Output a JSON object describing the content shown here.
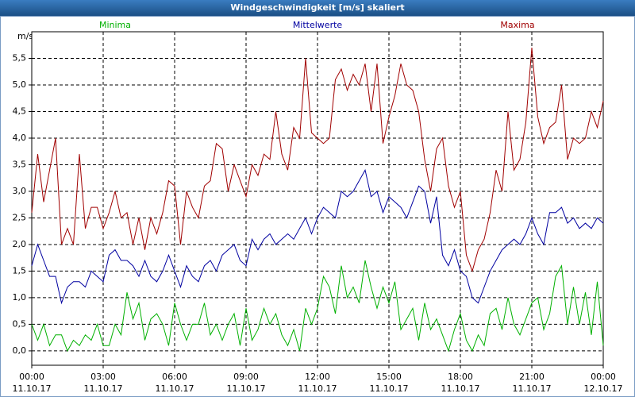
{
  "chart_data": {
    "type": "line",
    "title": "Windgeschwindigkeit [m/s] skaliert",
    "y_label": "m/s",
    "grid": true,
    "xlim": [
      0,
      24
    ],
    "ylim": [
      -0.27,
      6.0
    ],
    "yticks": [
      {
        "value": 0,
        "label": "0,0"
      },
      {
        "value": 0.5,
        "label": "0,5"
      },
      {
        "value": 1,
        "label": "1,0"
      },
      {
        "value": 1.5,
        "label": "1,5"
      },
      {
        "value": 2,
        "label": "2,0"
      },
      {
        "value": 2.5,
        "label": "2,5"
      },
      {
        "value": 3,
        "label": "3,0"
      },
      {
        "value": 3.5,
        "label": "3,5"
      },
      {
        "value": 4,
        "label": "4,0"
      },
      {
        "value": 4.5,
        "label": "4,5"
      },
      {
        "value": 5,
        "label": "5,0"
      },
      {
        "value": 5.5,
        "label": "5,5"
      }
    ],
    "xticks": [
      {
        "value": 0,
        "label": "00:00"
      },
      {
        "value": 3,
        "label": "03:00"
      },
      {
        "value": 6,
        "label": "06:00"
      },
      {
        "value": 9,
        "label": "09:00"
      },
      {
        "value": 12,
        "label": "12:00"
      },
      {
        "value": 15,
        "label": "15:00"
      },
      {
        "value": 18,
        "label": "18:00"
      },
      {
        "value": 21,
        "label": "21:00"
      },
      {
        "value": 24,
        "label": "00:00"
      }
    ],
    "xtick_dates": [
      "11.10.17",
      "11.10.17",
      "11.10.17",
      "11.10.17",
      "11.10.17",
      "11.10.17",
      "11.10.17",
      "11.10.17",
      "12.10.17"
    ],
    "x": [
      0,
      0.25,
      0.5,
      0.75,
      1,
      1.25,
      1.5,
      1.75,
      2,
      2.25,
      2.5,
      2.75,
      3,
      3.25,
      3.5,
      3.75,
      4,
      4.25,
      4.5,
      4.75,
      5,
      5.25,
      5.5,
      5.75,
      6,
      6.25,
      6.5,
      6.75,
      7,
      7.25,
      7.5,
      7.75,
      8,
      8.25,
      8.5,
      8.75,
      9,
      9.25,
      9.5,
      9.75,
      10,
      10.25,
      10.5,
      10.75,
      11,
      11.25,
      11.5,
      11.75,
      12,
      12.25,
      12.5,
      12.75,
      13,
      13.25,
      13.5,
      13.75,
      14,
      14.25,
      14.5,
      14.75,
      15,
      15.25,
      15.5,
      15.75,
      16,
      16.25,
      16.5,
      16.75,
      17,
      17.25,
      17.5,
      17.75,
      18,
      18.25,
      18.5,
      18.75,
      19,
      19.25,
      19.5,
      19.75,
      20,
      20.25,
      20.5,
      20.75,
      21,
      21.25,
      21.5,
      21.75,
      22,
      22.25,
      22.5,
      22.75,
      23,
      23.25,
      23.5,
      23.75,
      24
    ],
    "series": [
      {
        "name": "Minima",
        "color": "#00b000",
        "values": [
          0.5,
          0.2,
          0.5,
          0.1,
          0.3,
          0.3,
          0.0,
          0.2,
          0.1,
          0.3,
          0.2,
          0.5,
          0.1,
          0.1,
          0.5,
          0.3,
          1.1,
          0.6,
          0.9,
          0.2,
          0.6,
          0.7,
          0.5,
          0.1,
          0.9,
          0.5,
          0.2,
          0.5,
          0.5,
          0.9,
          0.3,
          0.5,
          0.2,
          0.5,
          0.7,
          0.1,
          0.8,
          0.2,
          0.4,
          0.8,
          0.5,
          0.7,
          0.3,
          0.1,
          0.4,
          0.0,
          0.8,
          0.5,
          0.8,
          1.4,
          1.2,
          0.7,
          1.6,
          1.0,
          1.2,
          0.9,
          1.7,
          1.2,
          0.8,
          1.2,
          0.9,
          1.3,
          0.4,
          0.6,
          0.8,
          0.2,
          0.9,
          0.4,
          0.6,
          0.3,
          0.0,
          0.4,
          0.7,
          0.2,
          0.0,
          0.3,
          0.1,
          0.7,
          0.8,
          0.4,
          1.0,
          0.5,
          0.3,
          0.6,
          0.9,
          1.0,
          0.4,
          0.7,
          1.4,
          1.6,
          0.5,
          1.2,
          0.5,
          1.1,
          0.3,
          1.3,
          0.1
        ]
      },
      {
        "name": "Mittelwerte",
        "color": "#0000a0",
        "values": [
          1.6,
          2.0,
          1.7,
          1.4,
          1.4,
          0.9,
          1.2,
          1.3,
          1.3,
          1.2,
          1.5,
          1.4,
          1.3,
          1.8,
          1.9,
          1.7,
          1.7,
          1.6,
          1.4,
          1.7,
          1.4,
          1.3,
          1.5,
          1.8,
          1.5,
          1.2,
          1.6,
          1.4,
          1.3,
          1.6,
          1.7,
          1.5,
          1.8,
          1.9,
          2.0,
          1.7,
          1.6,
          2.1,
          1.9,
          2.1,
          2.2,
          2.0,
          2.1,
          2.2,
          2.1,
          2.3,
          2.5,
          2.2,
          2.5,
          2.7,
          2.6,
          2.5,
          3.0,
          2.9,
          3.0,
          3.2,
          3.4,
          2.9,
          3.0,
          2.6,
          2.9,
          2.8,
          2.7,
          2.5,
          2.8,
          3.1,
          3.0,
          2.4,
          2.9,
          1.8,
          1.6,
          1.9,
          1.5,
          1.4,
          1.0,
          0.9,
          1.2,
          1.5,
          1.7,
          1.9,
          2.0,
          2.1,
          2.0,
          2.2,
          2.5,
          2.2,
          2.0,
          2.6,
          2.6,
          2.7,
          2.4,
          2.5,
          2.3,
          2.4,
          2.3,
          2.5,
          2.4
        ]
      },
      {
        "name": "Maxima",
        "color": "#a00000",
        "values": [
          2.6,
          3.7,
          2.8,
          3.4,
          4.0,
          2.0,
          2.3,
          2.0,
          3.7,
          2.3,
          2.7,
          2.7,
          2.3,
          2.6,
          3.0,
          2.5,
          2.6,
          2.0,
          2.5,
          1.9,
          2.5,
          2.2,
          2.6,
          3.2,
          3.1,
          2.0,
          3.0,
          2.7,
          2.5,
          3.1,
          3.2,
          3.9,
          3.8,
          3.0,
          3.5,
          3.2,
          2.9,
          3.5,
          3.3,
          3.7,
          3.6,
          4.5,
          3.7,
          3.4,
          4.2,
          4.0,
          5.5,
          4.1,
          4.0,
          3.9,
          4.0,
          5.1,
          5.3,
          4.9,
          5.2,
          5.0,
          5.4,
          4.5,
          5.4,
          3.9,
          4.4,
          4.8,
          5.4,
          5.0,
          4.9,
          4.5,
          3.6,
          3.0,
          3.8,
          4.0,
          3.1,
          2.7,
          3.0,
          1.8,
          1.5,
          1.9,
          2.1,
          2.6,
          3.4,
          3.0,
          4.5,
          3.4,
          3.6,
          4.3,
          5.7,
          4.4,
          3.9,
          4.2,
          4.3,
          5.0,
          3.6,
          4.0,
          3.9,
          4.0,
          4.5,
          4.2,
          4.7
        ]
      }
    ]
  }
}
